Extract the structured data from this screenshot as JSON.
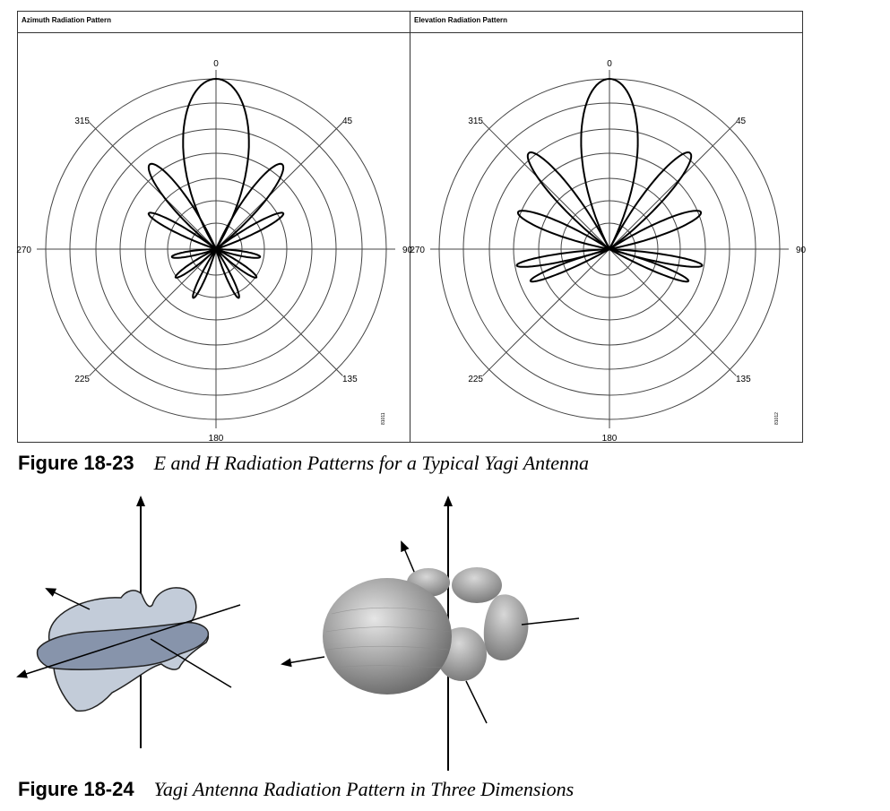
{
  "figure1": {
    "panels": [
      {
        "title": "Azimuth Radiation Pattern",
        "figure_id": "81011",
        "labels": [
          "0",
          "45",
          "90",
          "135",
          "180",
          "225",
          "270",
          "315"
        ]
      },
      {
        "title": "Elevation Radiation Pattern",
        "figure_id": "81012",
        "labels": [
          "0",
          "45",
          "90",
          "135",
          "180",
          "225",
          "270",
          "315"
        ]
      }
    ],
    "caption_number": "Figure 18-23",
    "caption_text": "E and H Radiation Patterns for a Typical Yagi Antenna"
  },
  "figure2": {
    "caption_number": "Figure 18-24",
    "caption_text": "Yagi Antenna Radiation Pattern in Three Dimensions"
  }
}
